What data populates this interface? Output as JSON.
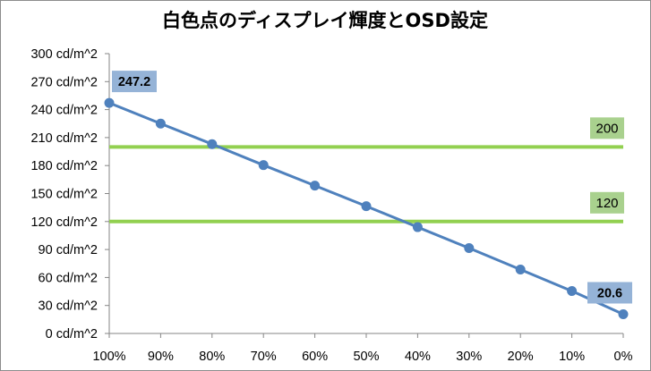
{
  "chart_data": {
    "type": "line",
    "title": "白色点のディスプレイ輝度とOSD設定",
    "xlabel": "",
    "ylabel": "",
    "categories": [
      "100%",
      "90%",
      "80%",
      "70%",
      "60%",
      "50%",
      "40%",
      "30%",
      "20%",
      "10%",
      "0%"
    ],
    "series": [
      {
        "values": [
          247.2,
          225,
          203,
          180.5,
          158.5,
          136.5,
          114,
          91.5,
          68.5,
          45.5,
          20.6
        ],
        "color": "#4f81bd"
      }
    ],
    "ylim": [
      0,
      300
    ],
    "y_ticks": [
      "0 cd/m^2",
      "30 cd/m^2",
      "60 cd/m^2",
      "90 cd/m^2",
      "120 cd/m^2",
      "150 cd/m^2",
      "180 cd/m^2",
      "210 cd/m^2",
      "240 cd/m^2",
      "270 cd/m^2",
      "300 cd/m^2"
    ],
    "y_tick_values": [
      0,
      30,
      60,
      90,
      120,
      150,
      180,
      210,
      240,
      270,
      300
    ],
    "data_labels": [
      {
        "index": 0,
        "text": "247.2"
      },
      {
        "index": 10,
        "text": "20.6"
      }
    ],
    "data_label_bg": "#95b3d7",
    "reference_lines": [
      {
        "value": 200,
        "label": "200",
        "color": "#92d050",
        "label_bg": "#a9d18e"
      },
      {
        "value": 120,
        "label": "120",
        "color": "#92d050",
        "label_bg": "#a9d18e"
      }
    ],
    "grid": false,
    "legend": "none"
  }
}
